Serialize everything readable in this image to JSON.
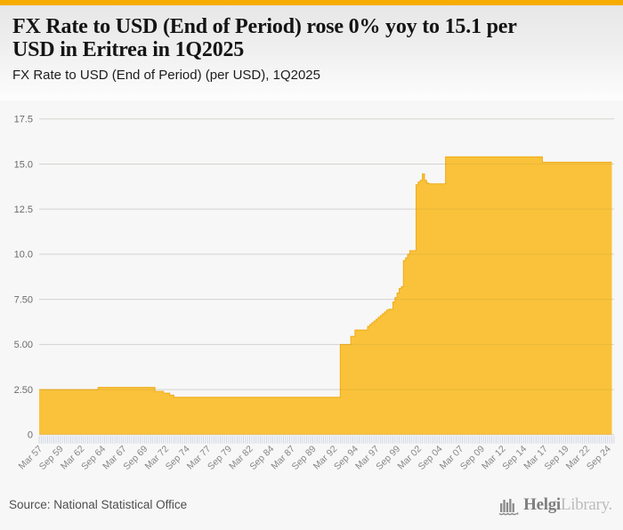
{
  "page": {
    "accent_color": "#F6AC00",
    "background_color": "#F7F7F7"
  },
  "header": {
    "title": "FX Rate to USD (End of Period) rose 0% yoy to 15.1 per USD in Eritrea in 1Q2025",
    "title_lines": [
      "FX Rate to USD (End of Period) rose 0% yoy to 15.1 per",
      "USD in Eritrea in 1Q2025"
    ],
    "subtitle": "FX Rate to USD (End of Period) (per USD), 1Q2025"
  },
  "footer": {
    "source": "Source: National Statistical Office",
    "logo_primary": "Helgi",
    "logo_secondary": "Library."
  },
  "chart_data": {
    "type": "area",
    "title": "FX Rate to USD (End of Period) (per USD), 1Q2025",
    "country": "Eritrea",
    "unit": "per USD",
    "frequency": "quarterly",
    "start": "1957Q1",
    "end": "2025Q1",
    "latest_value": 15.1,
    "xlabel": "",
    "ylabel": "",
    "ylim": [
      0,
      18.6
    ],
    "grid": true,
    "legend_position": "none",
    "y_ticks": {
      "values": [
        0,
        2.5,
        5.0,
        7.5,
        10.0,
        12.5,
        15.0,
        17.5
      ],
      "labels": [
        "0",
        "2.50",
        "5.00",
        "7.50",
        "10.0",
        "12.5",
        "15.0",
        "17.5"
      ]
    },
    "x_tick_labels": [
      "Mar 57",
      "Sep 59",
      "Mar 62",
      "Sep 64",
      "Mar 67",
      "Sep 69",
      "Mar 72",
      "Sep 74",
      "Mar 77",
      "Sep 79",
      "Mar 82",
      "Sep 84",
      "Mar 87",
      "Sep 89",
      "Mar 92",
      "Sep 94",
      "Mar 97",
      "Sep 99",
      "Mar 02",
      "Sep 04",
      "Mar 07",
      "Sep 09",
      "Mar 12",
      "Sep 14",
      "Mar 17",
      "Sep 19",
      "Mar 22",
      "Sep 24"
    ],
    "x_tick_label_step_quarters": 10,
    "series": [
      {
        "name": "FX Rate to USD (End of Period)",
        "interpolation": "step",
        "breakpoints": [
          [
            "1957Q1",
            2.5
          ],
          [
            "1964Q1",
            2.62
          ],
          [
            "1970Q4",
            2.4
          ],
          [
            "1971Q4",
            2.3
          ],
          [
            "1972Q3",
            2.19
          ],
          [
            "1973Q1",
            2.07
          ],
          [
            "1992Q4",
            5.0
          ],
          [
            "1994Q1",
            5.45
          ],
          [
            "1994Q3",
            5.8
          ],
          [
            "1996Q1",
            6.0
          ],
          [
            "1996Q2",
            6.1
          ],
          [
            "1996Q3",
            6.2
          ],
          [
            "1996Q4",
            6.3
          ],
          [
            "1997Q1",
            6.4
          ],
          [
            "1997Q2",
            6.5
          ],
          [
            "1997Q3",
            6.6
          ],
          [
            "1997Q4",
            6.7
          ],
          [
            "1998Q1",
            6.8
          ],
          [
            "1998Q2",
            6.9
          ],
          [
            "1998Q3",
            6.95
          ],
          [
            "1999Q1",
            7.35
          ],
          [
            "1999Q2",
            7.6
          ],
          [
            "1999Q3",
            7.85
          ],
          [
            "1999Q4",
            8.1
          ],
          [
            "2000Q1",
            8.2
          ],
          [
            "2000Q2",
            9.65
          ],
          [
            "2000Q3",
            9.8
          ],
          [
            "2000Q4",
            10.0
          ],
          [
            "2001Q1",
            10.2
          ],
          [
            "2001Q4",
            13.85
          ],
          [
            "2002Q1",
            14.0
          ],
          [
            "2002Q2",
            14.1
          ],
          [
            "2002Q3",
            14.45
          ],
          [
            "2002Q4",
            14.1
          ],
          [
            "2003Q1",
            13.95
          ],
          [
            "2003Q2",
            13.9
          ],
          [
            "2005Q2",
            15.4
          ],
          [
            "2016Q4",
            15.1
          ]
        ]
      }
    ],
    "colors": {
      "area_fill": "#F9C23A",
      "area_edge": "#F1AC18",
      "gridline": "#E2E2E2",
      "tick": "#CCD3E3",
      "axis_label": "#6B6B6B",
      "x_label": "#878787"
    }
  }
}
